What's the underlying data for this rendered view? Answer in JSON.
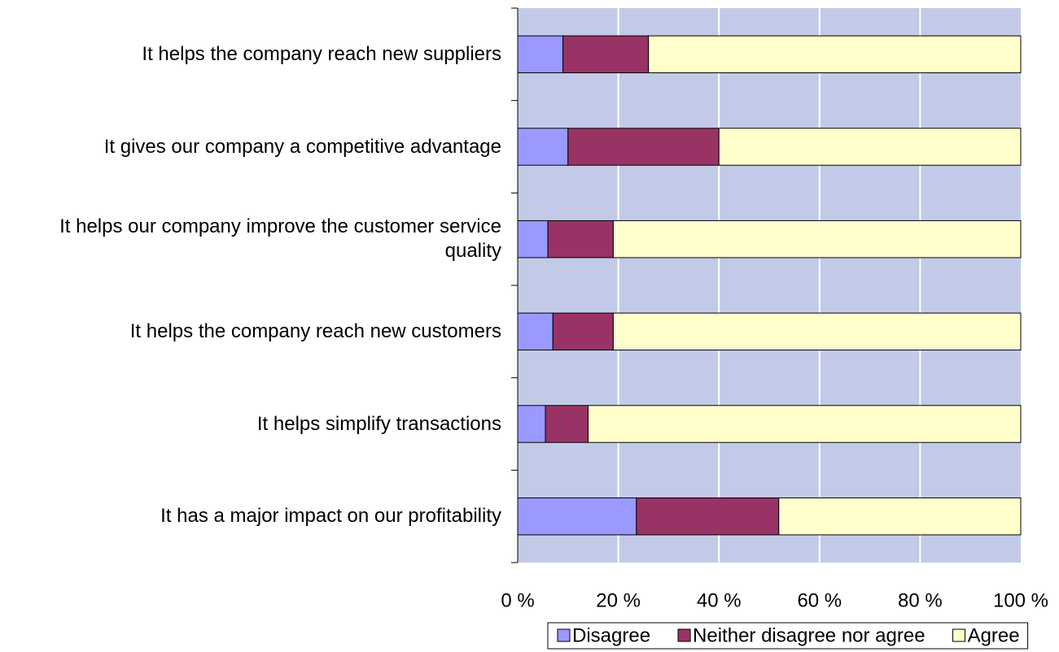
{
  "chart_data": {
    "type": "bar",
    "orientation": "horizontal",
    "stacked": true,
    "categories": [
      "It helps the company reach new suppliers",
      "It gives our company a competitive advantage",
      "It helps our company improve the customer service quality",
      "It helps the company reach new customers",
      "It helps simplify transactions",
      "It has a major impact on our profitability"
    ],
    "series": [
      {
        "name": "Disagree",
        "color": "#9999ff",
        "values": [
          9,
          10,
          6,
          7,
          5.5,
          23.6
        ]
      },
      {
        "name": "Neither disagree nor agree",
        "color": "#993366",
        "values": [
          17,
          30,
          13,
          12,
          8.5,
          28.3
        ]
      },
      {
        "name": "Agree",
        "color": "#ffffcc",
        "values": [
          74,
          60,
          81,
          81,
          86,
          48.1
        ]
      }
    ],
    "xlim": [
      0,
      100
    ],
    "xticks": [
      {
        "value": 0,
        "label": "0 %"
      },
      {
        "value": 20,
        "label": "20 %"
      },
      {
        "value": 40,
        "label": "40 %"
      },
      {
        "value": 60,
        "label": "60 %"
      },
      {
        "value": 80,
        "label": "80 %"
      },
      {
        "value": 100,
        "label": "100 %"
      }
    ],
    "grid": true,
    "legend": "bottom"
  }
}
